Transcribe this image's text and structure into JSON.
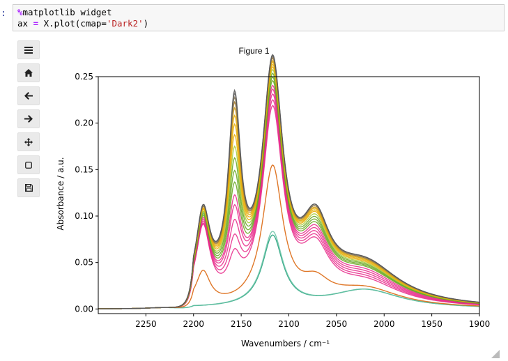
{
  "cell": {
    "prompt": ":",
    "line1_magic": "%matplotlib widget",
    "line2_prefix": "ax ",
    "line2_eq": "=",
    "line2_mid": " X.plot(cmap=",
    "line2_str": "'Dark2'",
    "line2_end": ")"
  },
  "toolbar": {
    "items": [
      {
        "name": "menu",
        "icon": "menu-icon"
      },
      {
        "name": "home",
        "icon": "home-icon"
      },
      {
        "name": "back",
        "icon": "arrow-left-icon"
      },
      {
        "name": "forward",
        "icon": "arrow-right-icon"
      },
      {
        "name": "pan",
        "icon": "move-icon"
      },
      {
        "name": "zoom",
        "icon": "zoom-rect-icon"
      },
      {
        "name": "save",
        "icon": "save-icon"
      }
    ]
  },
  "figure": {
    "title": "Figure 1"
  },
  "chart_data": {
    "type": "line",
    "xlabel": "Wavenumbers / cm⁻¹",
    "ylabel": "Absorbance / a.u.",
    "xlim": [
      2300,
      1900
    ],
    "ylim": [
      -0.005,
      0.25
    ],
    "x_ticks": [
      2250,
      2200,
      2150,
      2100,
      2050,
      2000,
      1950,
      1900
    ],
    "y_ticks": [
      0.0,
      0.05,
      0.1,
      0.15,
      0.2,
      0.25
    ],
    "y_tick_labels": [
      "0.00",
      "0.05",
      "0.10",
      "0.15",
      "0.20",
      "0.25"
    ],
    "colormap": "Dark2",
    "series_count": 20,
    "peaks": {
      "p2190": [
        0.0,
        0.0,
        0.035,
        0.08,
        0.08,
        0.081,
        0.082,
        0.083,
        0.084,
        0.085,
        0.086,
        0.086,
        0.087,
        0.087,
        0.087,
        0.088,
        0.088,
        0.088,
        0.089,
        0.089
      ],
      "p2157": [
        0.0,
        0.0,
        0.0,
        0.035,
        0.05,
        0.065,
        0.08,
        0.09,
        0.103,
        0.115,
        0.128,
        0.14,
        0.152,
        0.163,
        0.172,
        0.18,
        0.186,
        0.191,
        0.195,
        0.198
      ],
      "p2117": [
        0.076,
        0.08,
        0.148,
        0.205,
        0.21,
        0.215,
        0.219,
        0.222,
        0.226,
        0.229,
        0.232,
        0.235,
        0.237,
        0.239,
        0.241,
        0.242,
        0.244,
        0.245,
        0.246,
        0.247
      ],
      "p2070": [
        0.0,
        0.0,
        0.02,
        0.05,
        0.052,
        0.054,
        0.056,
        0.058,
        0.06,
        0.062,
        0.064,
        0.066,
        0.068,
        0.069,
        0.07,
        0.071,
        0.072,
        0.072,
        0.073,
        0.073
      ],
      "tail": [
        0.02,
        0.02,
        0.02,
        0.025,
        0.027,
        0.029,
        0.031,
        0.033,
        0.035,
        0.036,
        0.037,
        0.038,
        0.039,
        0.04,
        0.041,
        0.041,
        0.042,
        0.042,
        0.043,
        0.043
      ]
    },
    "colors": [
      "#1b9e77",
      "#66c2a5",
      "#d95f02",
      "#e7298a",
      "#e7298a",
      "#e7298a",
      "#e7298a",
      "#e7298a",
      "#66a61e",
      "#66a61e",
      "#66a61e",
      "#a6cc33",
      "#e6ab02",
      "#e6ab02",
      "#e6ab02",
      "#d4a017",
      "#a6761d",
      "#8a7a5a",
      "#666666",
      "#555555"
    ]
  }
}
